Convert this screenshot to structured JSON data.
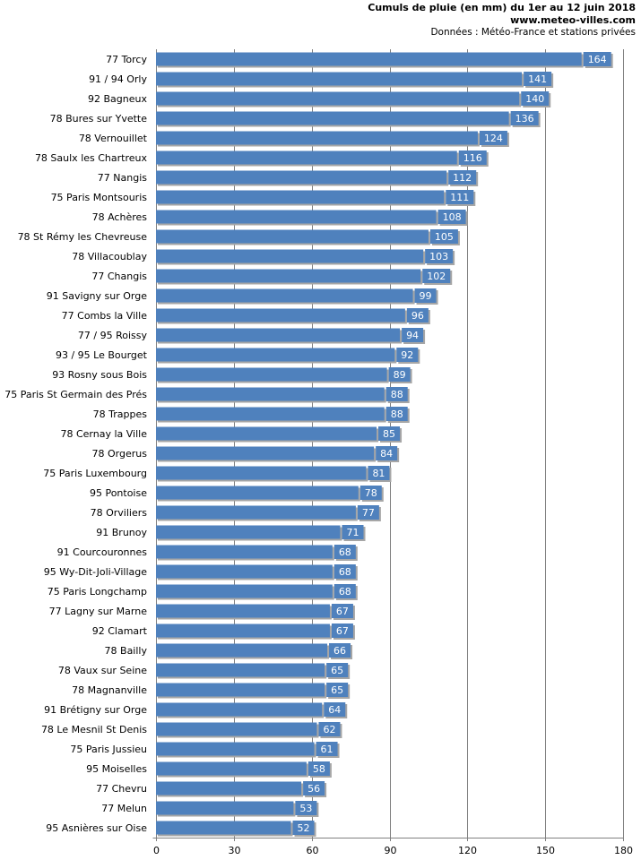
{
  "chart_data": {
    "type": "bar",
    "orientation": "horizontal",
    "title": "Cumuls de pluie (en mm) du 1er au 12 juin 2018",
    "subtitle": "www.meteo-villes.com",
    "source": "Données : Météo-France et stations privées",
    "xlim": [
      0,
      180
    ],
    "xticks": [
      "0",
      "30",
      "60",
      "90",
      "120",
      "150",
      "180"
    ],
    "grid": true,
    "colors": {
      "bar": "#4f81bd",
      "label_bg": "#4f81bd",
      "shadow": "#a6a6a6",
      "grid": "#808080"
    },
    "categories": [
      "77 Torcy",
      "91 / 94 Orly",
      "92 Bagneux",
      "78 Bures sur Yvette",
      "78 Vernouillet",
      "78 Saulx les Chartreux",
      "77 Nangis",
      "75 Paris Montsouris",
      "78 Achères",
      "78 St Rémy les Chevreuse",
      "78 Villacoublay",
      "77 Changis",
      "91 Savigny sur Orge",
      "77 Combs la Ville",
      "77 / 95 Roissy",
      "93 / 95 Le Bourget",
      "93 Rosny sous Bois",
      "75 Paris St Germain des Prés",
      "78 Trappes",
      "78 Cernay la Ville",
      "78 Orgerus",
      "75 Paris Luxembourg",
      "95 Pontoise",
      "78 Orviliers",
      "91 Brunoy",
      "91 Courcouronnes",
      "95 Wy-Dit-Joli-Village",
      "75 Paris Longchamp",
      "77 Lagny sur Marne",
      "92 Clamart",
      "78 Bailly",
      "78 Vaux sur Seine",
      "78 Magnanville",
      "91 Brétigny sur Orge",
      "78 Le Mesnil St Denis",
      "75 Paris Jussieu",
      "95 Moiselles",
      "77 Chevru",
      "77 Melun",
      "95 Asnières sur Oise"
    ],
    "values": [
      164,
      141,
      140,
      136,
      124,
      116,
      112,
      111,
      108,
      105,
      103,
      102,
      99,
      96,
      94,
      92,
      89,
      88,
      88,
      85,
      84,
      81,
      78,
      77,
      71,
      68,
      68,
      68,
      67,
      67,
      66,
      65,
      65,
      64,
      62,
      61,
      58,
      56,
      53,
      52
    ]
  }
}
